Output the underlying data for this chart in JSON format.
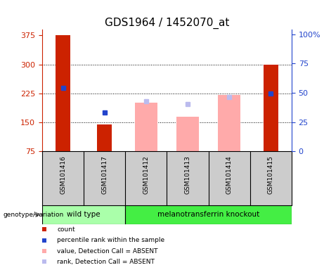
{
  "title": "GDS1964 / 1452070_at",
  "samples": [
    "GSM101416",
    "GSM101417",
    "GSM101412",
    "GSM101413",
    "GSM101414",
    "GSM101415"
  ],
  "groups": [
    "wild type",
    "wild type",
    "melanotransferrin knockout",
    "melanotransferrin knockout",
    "melanotransferrin knockout",
    "melanotransferrin knockout"
  ],
  "group_labels": [
    "wild type",
    "melanotransferrin knockout"
  ],
  "wt_color": "#aaffaa",
  "mt_color": "#44ee44",
  "sample_bg": "#cccccc",
  "red_bars": [
    375,
    145,
    0,
    0,
    0,
    300
  ],
  "blue_squares_y": [
    240,
    175,
    0,
    0,
    0,
    225
  ],
  "pink_bars": [
    0,
    0,
    200,
    165,
    220,
    0
  ],
  "lightblue_squares_y": [
    0,
    0,
    205,
    198,
    215,
    0
  ],
  "ylim_left": [
    75,
    390
  ],
  "yticks_left": [
    75,
    150,
    225,
    300,
    375
  ],
  "ylim_right": [
    0,
    104
  ],
  "yticks_right": [
    0,
    25,
    50,
    75,
    100
  ],
  "yticklabels_right": [
    "0",
    "25",
    "50",
    "75",
    "100%"
  ],
  "red_color": "#cc2200",
  "blue_color": "#2244cc",
  "pink_color": "#ffaaaa",
  "lightblue_color": "#bbbbee",
  "bg_color": "#ffffff",
  "label_fontsize": 8,
  "title_fontsize": 11,
  "legend_items": [
    [
      "#cc2200",
      "count"
    ],
    [
      "#2244cc",
      "percentile rank within the sample"
    ],
    [
      "#ffaaaa",
      "value, Detection Call = ABSENT"
    ],
    [
      "#bbbbee",
      "rank, Detection Call = ABSENT"
    ]
  ]
}
